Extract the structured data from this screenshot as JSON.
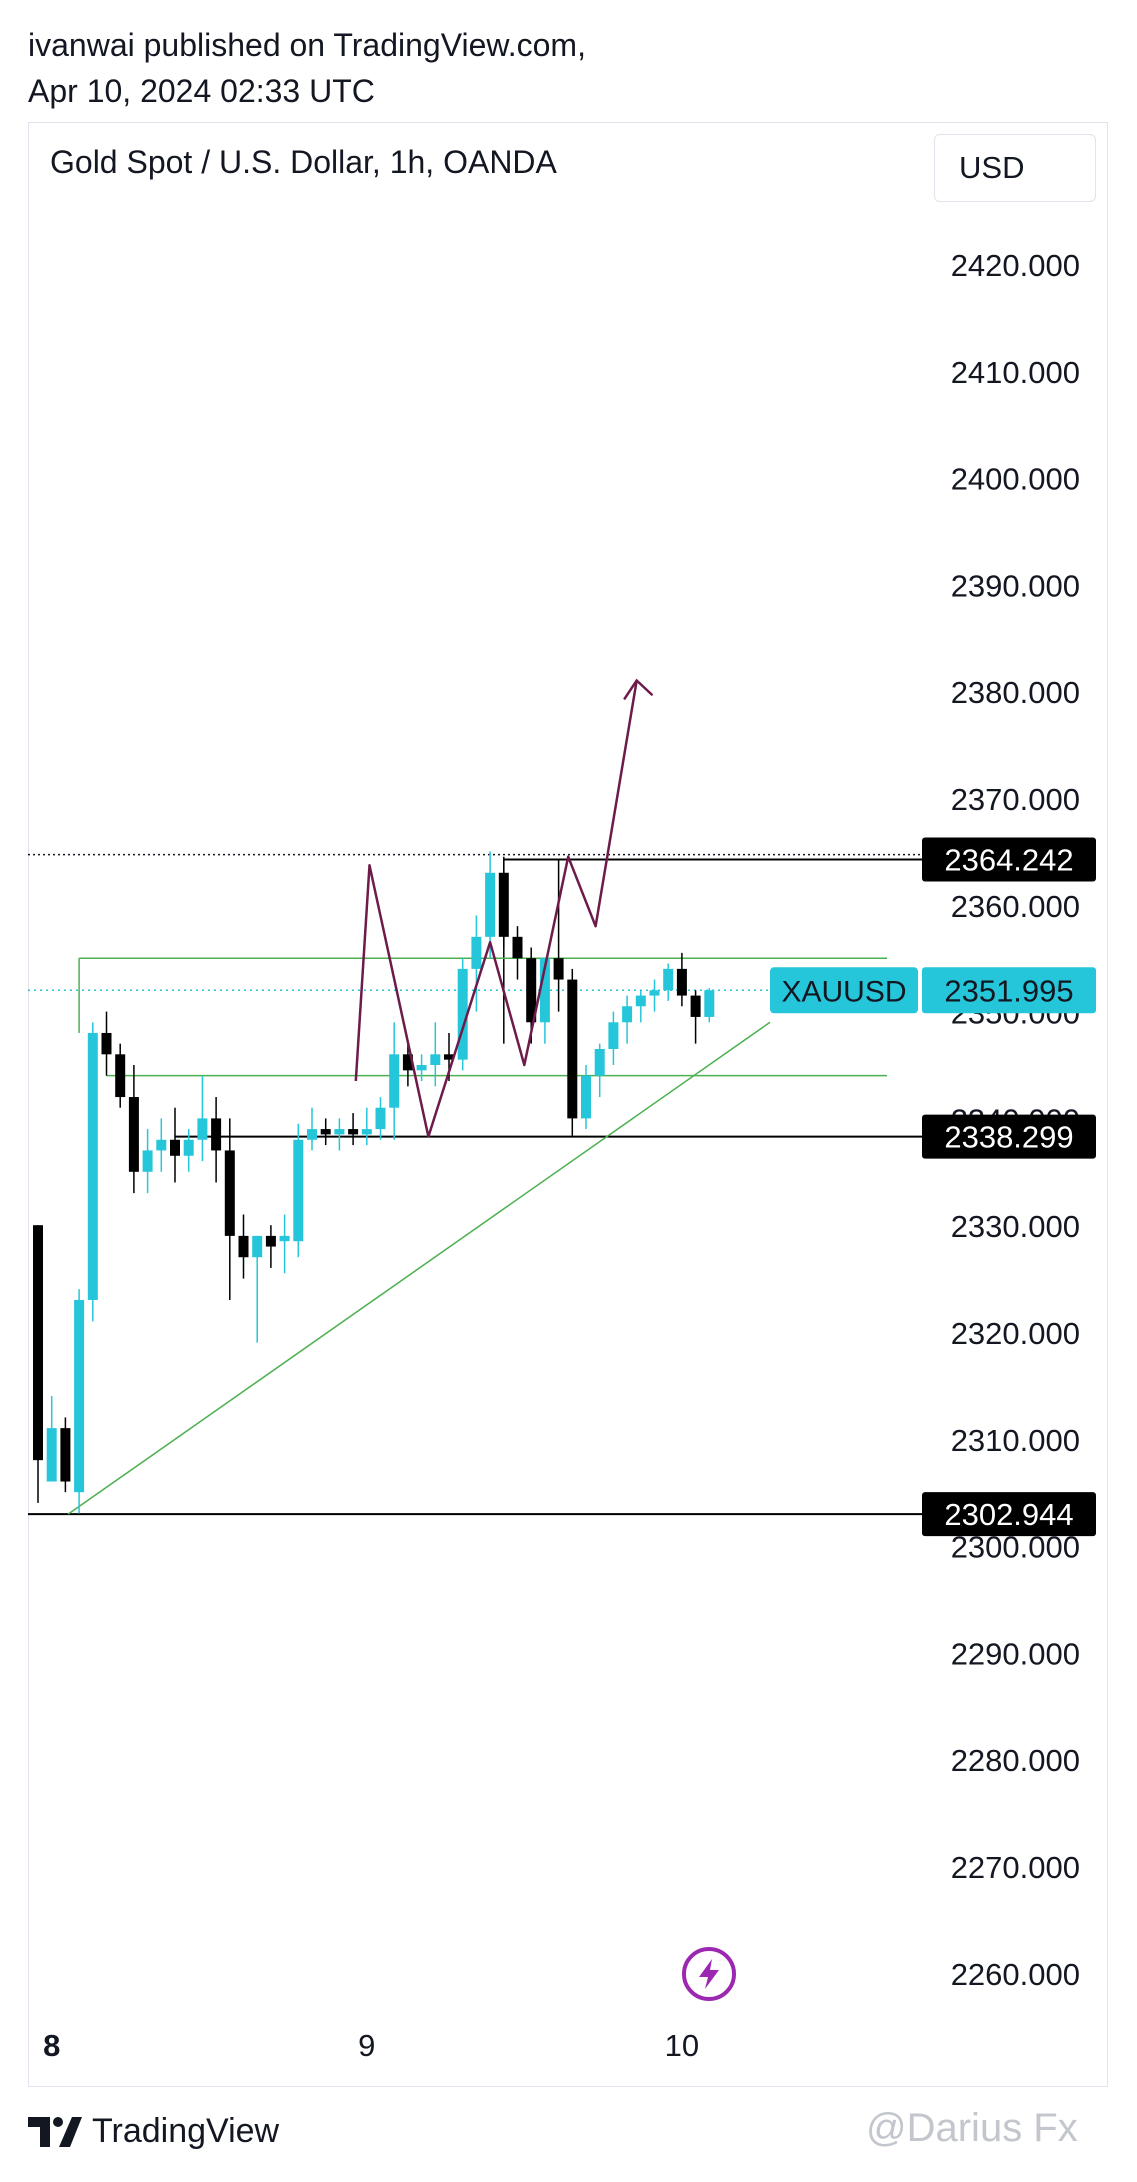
{
  "header": {
    "publisher_line": "ivanwai published on TradingView.com,",
    "date_line": "Apr 10, 2024 02:33 UTC"
  },
  "chart_header": {
    "title": "Gold Spot / U.S. Dollar, 1h, OANDA",
    "currency": "USD"
  },
  "chart_data": {
    "type": "candlestick",
    "title": "Gold Spot / U.S. Dollar, 1h, OANDA",
    "currency": "USD",
    "ylim": [
      2255,
      2427
    ],
    "y_ticks": [
      {
        "value": 2420,
        "label": "2420.000"
      },
      {
        "value": 2410,
        "label": "2410.000"
      },
      {
        "value": 2400,
        "label": "2400.000"
      },
      {
        "value": 2390,
        "label": "2390.000"
      },
      {
        "value": 2380,
        "label": "2380.000"
      },
      {
        "value": 2370,
        "label": "2370.000"
      },
      {
        "value": 2360,
        "label": "2360.000"
      },
      {
        "value": 2350,
        "label": "2350.000"
      },
      {
        "value": 2340,
        "label": "2340.000"
      },
      {
        "value": 2330,
        "label": "2330.000"
      },
      {
        "value": 2320,
        "label": "2320.000"
      },
      {
        "value": 2310,
        "label": "2310.000"
      },
      {
        "value": 2300,
        "label": "2300.000"
      },
      {
        "value": 2290,
        "label": "2290.000"
      },
      {
        "value": 2280,
        "label": "2280.000"
      },
      {
        "value": 2270,
        "label": "2270.000"
      },
      {
        "value": 2260,
        "label": "2260.000"
      }
    ],
    "x_ticks": [
      {
        "bar": 1,
        "label": "8",
        "bold": true
      },
      {
        "bar": 24,
        "label": "9",
        "bold": false
      },
      {
        "bar": 47,
        "label": "10",
        "bold": false
      }
    ],
    "candles": [
      {
        "o": 2330,
        "h": 2330,
        "l": 2304,
        "c": 2308
      },
      {
        "o": 2306,
        "h": 2314,
        "l": 2306,
        "c": 2311
      },
      {
        "o": 2311,
        "h": 2312,
        "l": 2305,
        "c": 2306
      },
      {
        "o": 2305,
        "h": 2324,
        "l": 2303,
        "c": 2323
      },
      {
        "o": 2323,
        "h": 2349,
        "l": 2321,
        "c": 2348
      },
      {
        "o": 2348,
        "h": 2350,
        "l": 2344,
        "c": 2346
      },
      {
        "o": 2346,
        "h": 2347,
        "l": 2341,
        "c": 2342
      },
      {
        "o": 2342,
        "h": 2345,
        "l": 2333,
        "c": 2335
      },
      {
        "o": 2335,
        "h": 2339,
        "l": 2333,
        "c": 2337
      },
      {
        "o": 2337,
        "h": 2340,
        "l": 2335,
        "c": 2338
      },
      {
        "o": 2338,
        "h": 2341,
        "l": 2334,
        "c": 2336.5
      },
      {
        "o": 2336.5,
        "h": 2339,
        "l": 2335,
        "c": 2338
      },
      {
        "o": 2338,
        "h": 2344,
        "l": 2336,
        "c": 2340
      },
      {
        "o": 2340,
        "h": 2342,
        "l": 2334,
        "c": 2337
      },
      {
        "o": 2337,
        "h": 2340,
        "l": 2323,
        "c": 2329
      },
      {
        "o": 2329,
        "h": 2331,
        "l": 2325,
        "c": 2327
      },
      {
        "o": 2327,
        "h": 2329,
        "l": 2319,
        "c": 2329
      },
      {
        "o": 2329,
        "h": 2330,
        "l": 2326,
        "c": 2328
      },
      {
        "o": 2328.5,
        "h": 2331,
        "l": 2325.5,
        "c": 2329
      },
      {
        "o": 2328.5,
        "h": 2339.5,
        "l": 2327,
        "c": 2338
      },
      {
        "o": 2338,
        "h": 2341,
        "l": 2337,
        "c": 2339
      },
      {
        "o": 2339,
        "h": 2340,
        "l": 2337.5,
        "c": 2338.5
      },
      {
        "o": 2338.5,
        "h": 2340,
        "l": 2337,
        "c": 2339
      },
      {
        "o": 2339,
        "h": 2340.5,
        "l": 2337.5,
        "c": 2338.5
      },
      {
        "o": 2338.5,
        "h": 2341,
        "l": 2337.5,
        "c": 2339
      },
      {
        "o": 2339,
        "h": 2342,
        "l": 2338,
        "c": 2341
      },
      {
        "o": 2341,
        "h": 2349,
        "l": 2338,
        "c": 2346
      },
      {
        "o": 2346,
        "h": 2347,
        "l": 2343,
        "c": 2344.5
      },
      {
        "o": 2344.5,
        "h": 2346,
        "l": 2343.5,
        "c": 2345
      },
      {
        "o": 2345,
        "h": 2349,
        "l": 2343,
        "c": 2346
      },
      {
        "o": 2346,
        "h": 2348,
        "l": 2343.5,
        "c": 2345.5
      },
      {
        "o": 2345.5,
        "h": 2355,
        "l": 2344.5,
        "c": 2354
      },
      {
        "o": 2354,
        "h": 2359,
        "l": 2350,
        "c": 2357
      },
      {
        "o": 2357,
        "h": 2365,
        "l": 2355,
        "c": 2363
      },
      {
        "o": 2363,
        "h": 2364.5,
        "l": 2356,
        "c": 2357
      },
      {
        "o": 2357,
        "h": 2358,
        "l": 2353,
        "c": 2355
      },
      {
        "o": 2355,
        "h": 2356,
        "l": 2347,
        "c": 2349
      },
      {
        "o": 2349,
        "h": 2355,
        "l": 2347,
        "c": 2355
      },
      {
        "o": 2355,
        "h": 2364.2,
        "l": 2350,
        "c": 2353
      },
      {
        "o": 2353,
        "h": 2354,
        "l": 2338.3,
        "c": 2340
      },
      {
        "o": 2340,
        "h": 2345,
        "l": 2339,
        "c": 2344
      },
      {
        "o": 2344,
        "h": 2347,
        "l": 2342,
        "c": 2346.5
      },
      {
        "o": 2346.5,
        "h": 2350,
        "l": 2345,
        "c": 2349
      },
      {
        "o": 2349,
        "h": 2351.5,
        "l": 2347,
        "c": 2350.5
      },
      {
        "o": 2350.5,
        "h": 2352,
        "l": 2349,
        "c": 2351.5
      },
      {
        "o": 2351.5,
        "h": 2353,
        "l": 2350,
        "c": 2352
      },
      {
        "o": 2352,
        "h": 2354.5,
        "l": 2351,
        "c": 2354
      },
      {
        "o": 2354,
        "h": 2355.5,
        "l": 2350.5,
        "c": 2351.5
      },
      {
        "o": 2351.5,
        "h": 2352,
        "l": 2347,
        "c": 2349.5
      },
      {
        "o": 2349.5,
        "h": 2352.2,
        "l": 2349,
        "c": 2352
      }
    ],
    "price_labels": [
      {
        "value": 2364.242,
        "label": "2364.242"
      },
      {
        "value": 2338.299,
        "label": "2338.299"
      },
      {
        "value": 2302.944,
        "label": "2302.944"
      }
    ],
    "current_price": {
      "symbol": "XAUUSD",
      "value": 2351.995,
      "label": "2351.995"
    },
    "colors": {
      "up": "#26c6da",
      "down": "#000000",
      "trend": "#4caf50",
      "projection": "#6d1b4a",
      "current": "#26c6da"
    }
  },
  "footer": {
    "brand": "TradingView",
    "watermark": "@Darius Fx"
  }
}
